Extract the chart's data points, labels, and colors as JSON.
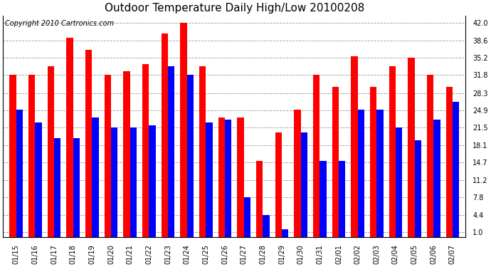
{
  "title": "Outdoor Temperature Daily High/Low 20100208",
  "copyright": "Copyright 2010 Cartronics.com",
  "y_ticks": [
    1.0,
    4.4,
    7.8,
    11.2,
    14.7,
    18.1,
    21.5,
    24.9,
    28.3,
    31.8,
    35.2,
    38.6,
    42.0
  ],
  "ylim": [
    0,
    43.5
  ],
  "dates": [
    "01/15",
    "01/16",
    "01/17",
    "01/18",
    "01/19",
    "01/20",
    "01/21",
    "01/22",
    "01/23",
    "01/24",
    "01/25",
    "01/26",
    "01/27",
    "01/28",
    "01/29",
    "01/30",
    "01/31",
    "02/01",
    "02/02",
    "02/03",
    "02/04",
    "02/05",
    "02/06",
    "02/07"
  ],
  "highs": [
    31.8,
    31.8,
    33.5,
    39.2,
    36.8,
    31.8,
    32.5,
    34.0,
    40.0,
    42.0,
    33.5,
    23.5,
    23.5,
    15.0,
    20.5,
    25.0,
    31.8,
    29.5,
    35.5,
    29.5,
    33.5,
    35.2,
    31.8,
    29.5
  ],
  "lows": [
    25.0,
    22.5,
    19.5,
    19.5,
    23.5,
    21.5,
    21.5,
    22.0,
    33.5,
    31.8,
    22.5,
    23.0,
    7.8,
    4.4,
    1.5,
    20.5,
    15.0,
    15.0,
    25.0,
    25.0,
    21.5,
    19.0,
    23.0,
    26.5
  ],
  "high_color": "#ff0000",
  "low_color": "#0000ff",
  "bar_width": 0.35,
  "background_color": "#ffffff",
  "plot_bg_color": "#ffffff",
  "grid_color": "#999999",
  "title_fontsize": 11,
  "tick_fontsize": 7,
  "copyright_fontsize": 7
}
